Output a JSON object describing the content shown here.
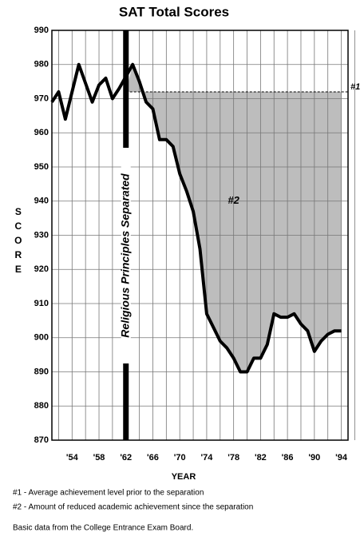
{
  "chart_data": {
    "type": "line",
    "title": "SAT Total Scores",
    "xlabel": "YEAR",
    "ylabel": "SCORE",
    "x": [
      1951,
      1952,
      1953,
      1955,
      1957,
      1958,
      1959,
      1960,
      1961,
      1963,
      1964,
      1965,
      1966,
      1967,
      1968,
      1969,
      1970,
      1971,
      1972,
      1973,
      1974,
      1975,
      1976,
      1977,
      1978,
      1979,
      1980,
      1981,
      1982,
      1983,
      1984,
      1985,
      1986,
      1987,
      1988,
      1989,
      1990,
      1991,
      1992,
      1993,
      1994
    ],
    "values": [
      969,
      972,
      964,
      980,
      969,
      974,
      976,
      970,
      973,
      980,
      975,
      969,
      967,
      958,
      958,
      956,
      948,
      943,
      937,
      926,
      907,
      903,
      899,
      897,
      894,
      890,
      890,
      894,
      894,
      898,
      907,
      906,
      906,
      907,
      904,
      902,
      896,
      899,
      901,
      902,
      902
    ],
    "color": "#000000",
    "area_color": "#bdbdbd",
    "xlim": [
      1951,
      1995
    ],
    "xticks": [
      {
        "value": 1954,
        "label": "'54"
      },
      {
        "value": 1958,
        "label": "'58"
      },
      {
        "value": 1962,
        "label": "'62"
      },
      {
        "value": 1966,
        "label": "'66"
      },
      {
        "value": 1970,
        "label": "'70"
      },
      {
        "value": 1974,
        "label": "'74"
      },
      {
        "value": 1978,
        "label": "'78"
      },
      {
        "value": 1982,
        "label": "'82"
      },
      {
        "value": 1986,
        "label": "'86"
      },
      {
        "value": 1990,
        "label": "'90"
      },
      {
        "value": 1994,
        "label": "'94"
      }
    ],
    "ylim": [
      870,
      990
    ],
    "yticks": [
      870,
      880,
      890,
      900,
      910,
      920,
      930,
      940,
      950,
      960,
      970,
      980,
      990
    ],
    "grid": true,
    "separation": {
      "x": 1962,
      "text": "Religious Principles Separated"
    },
    "baseline": {
      "value": 972,
      "label": "#1"
    },
    "area_label": {
      "text": "#2",
      "x": 1978,
      "y": 940
    },
    "notes": [
      "#1 - Average achievement level prior to the separation",
      "#2 - Amount of reduced academic achievement since the separation",
      "Basic data from the College Entrance Exam Board."
    ]
  }
}
